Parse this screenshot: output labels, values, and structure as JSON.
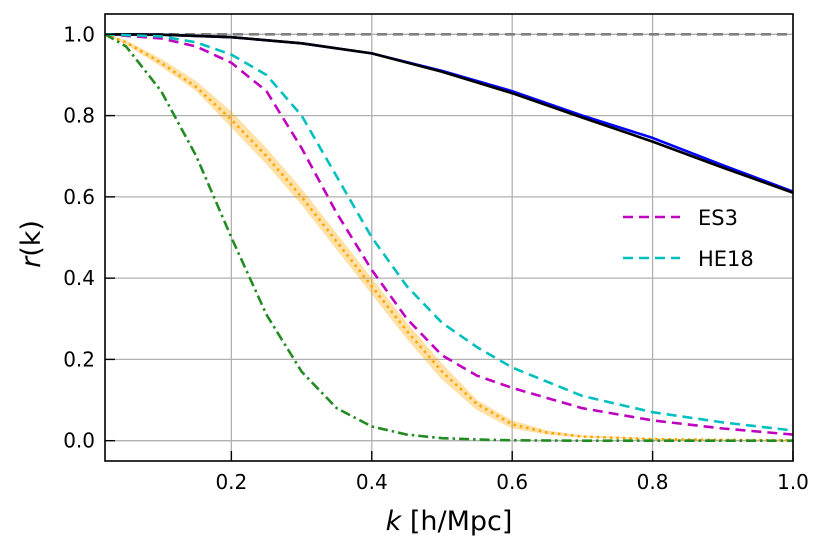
{
  "chart_data": {
    "type": "line",
    "xlabel_var": "k",
    "xlabel_unit": "[h/Mpc]",
    "ylabel_var": "r",
    "ylabel_arg": "(k)",
    "xlim": [
      0.02,
      1.0
    ],
    "ylim": [
      -0.05,
      1.05
    ],
    "xticks": [
      0.2,
      0.4,
      0.6,
      0.8,
      1.0
    ],
    "xtick_labels": [
      "0.2",
      "0.4",
      "0.6",
      "0.8",
      "1.0"
    ],
    "yticks": [
      0.0,
      0.2,
      0.4,
      0.6,
      0.8,
      1.0
    ],
    "ytick_labels": [
      "0.0",
      "0.2",
      "0.4",
      "0.6",
      "0.8",
      "1.0"
    ],
    "grid": true,
    "legend_position": "center-right",
    "series": [
      {
        "color": "#808080",
        "dash": "dashed",
        "x": [
          0.02,
          1.0
        ],
        "y": [
          1.0,
          1.0
        ]
      },
      {
        "color": "#0000ff",
        "dash": "solid",
        "x": [
          0.02,
          0.1,
          0.2,
          0.3,
          0.4,
          0.5,
          0.6,
          0.7,
          0.8,
          0.9,
          1.0
        ],
        "y": [
          1.0,
          0.999,
          0.993,
          0.978,
          0.953,
          0.91,
          0.86,
          0.8,
          0.745,
          0.678,
          0.613
        ]
      },
      {
        "color": "#000000",
        "dash": "solid",
        "x": [
          0.02,
          0.1,
          0.2,
          0.3,
          0.4,
          0.5,
          0.6,
          0.7,
          0.8,
          0.9,
          1.0
        ],
        "y": [
          1.0,
          0.999,
          0.993,
          0.978,
          0.953,
          0.908,
          0.855,
          0.795,
          0.736,
          0.672,
          0.61
        ]
      },
      {
        "name": "ES3",
        "color": "#c000c0",
        "dash": "dashed",
        "x": [
          0.02,
          0.1,
          0.15,
          0.2,
          0.25,
          0.3,
          0.35,
          0.4,
          0.45,
          0.5,
          0.55,
          0.6,
          0.7,
          0.8,
          0.9,
          1.0
        ],
        "y": [
          1.0,
          0.99,
          0.97,
          0.93,
          0.86,
          0.72,
          0.56,
          0.42,
          0.3,
          0.21,
          0.16,
          0.13,
          0.08,
          0.05,
          0.03,
          0.015
        ]
      },
      {
        "name": "HE18",
        "color": "#00bfbf",
        "dash": "dashed",
        "x": [
          0.02,
          0.1,
          0.15,
          0.2,
          0.25,
          0.3,
          0.35,
          0.4,
          0.45,
          0.5,
          0.55,
          0.6,
          0.7,
          0.8,
          0.9,
          1.0
        ],
        "y": [
          1.0,
          0.995,
          0.98,
          0.95,
          0.9,
          0.8,
          0.65,
          0.5,
          0.38,
          0.29,
          0.23,
          0.18,
          0.11,
          0.07,
          0.045,
          0.025
        ]
      },
      {
        "color": "#ffa500",
        "dash": "dotted",
        "x": [
          0.02,
          0.05,
          0.1,
          0.15,
          0.2,
          0.25,
          0.3,
          0.35,
          0.4,
          0.45,
          0.5,
          0.55,
          0.6,
          0.65,
          0.7,
          0.8,
          0.9,
          1.0
        ],
        "y": [
          1.0,
          0.98,
          0.93,
          0.87,
          0.79,
          0.7,
          0.6,
          0.49,
          0.38,
          0.27,
          0.17,
          0.09,
          0.04,
          0.02,
          0.01,
          0.004,
          0.002,
          0.001
        ],
        "band_low": [
          1.0,
          0.975,
          0.92,
          0.86,
          0.77,
          0.68,
          0.58,
          0.47,
          0.36,
          0.25,
          0.15,
          0.075,
          0.03,
          0.015,
          0.008,
          0.003,
          0.001,
          0.0
        ],
        "band_high": [
          1.0,
          0.985,
          0.94,
          0.885,
          0.81,
          0.72,
          0.62,
          0.51,
          0.4,
          0.29,
          0.19,
          0.1,
          0.05,
          0.025,
          0.013,
          0.006,
          0.003,
          0.002
        ]
      },
      {
        "color": "#228b22",
        "dash": "dashdot",
        "x": [
          0.02,
          0.05,
          0.1,
          0.15,
          0.2,
          0.25,
          0.3,
          0.35,
          0.4,
          0.45,
          0.5,
          0.55,
          0.6,
          0.7,
          0.8,
          1.0
        ],
        "y": [
          1.0,
          0.97,
          0.86,
          0.7,
          0.5,
          0.31,
          0.17,
          0.08,
          0.035,
          0.015,
          0.006,
          0.003,
          0.001,
          0.0,
          0.0,
          0.0
        ]
      }
    ]
  }
}
